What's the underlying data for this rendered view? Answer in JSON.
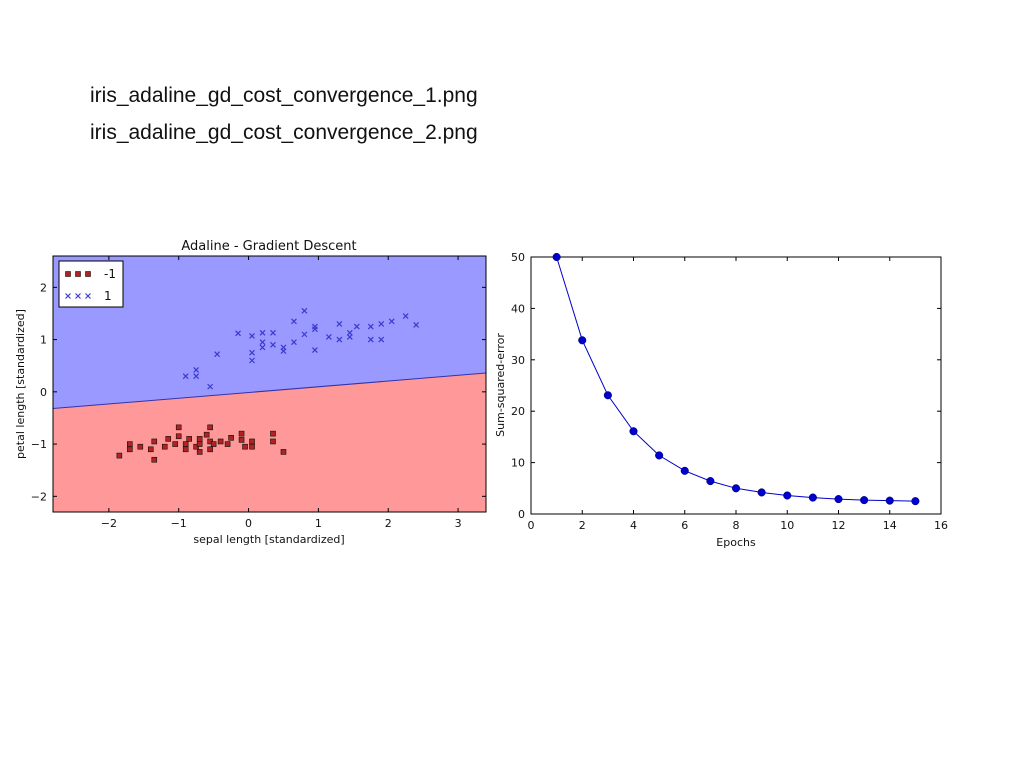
{
  "slide": {
    "lines": [
      "iris_adaline_gd_cost_convergence_1.png",
      "iris_adaline_gd_cost_convergence_2.png"
    ]
  },
  "colors": {
    "region_neg": "#ff9999",
    "region_pos": "#9999ff",
    "class_neg_marker": "#b22222",
    "class_pos_marker": "#3a3ad0",
    "cost_line": "#0000cc"
  },
  "chart_data": [
    {
      "type": "scatter",
      "title": "Adaline - Gradient Descent",
      "xlabel": "sepal length [standardized]",
      "ylabel": "petal length [standardized]",
      "xlim": [
        -2.8,
        3.4
      ],
      "ylim": [
        -2.3,
        2.6
      ],
      "xticks": [
        -2,
        -1,
        0,
        1,
        2,
        3
      ],
      "yticks": [
        -2,
        -1,
        0,
        1,
        2
      ],
      "xtick_labels": [
        "−2",
        "−1",
        "0",
        "1",
        "2",
        "3"
      ],
      "ytick_labels": [
        "−2",
        "−1",
        "0",
        "1",
        "2"
      ],
      "grid": false,
      "legend_position": "top-left",
      "decision_boundary": {
        "x": [
          -2.8,
          3.4
        ],
        "y": [
          -0.32,
          0.36
        ]
      },
      "regions": [
        {
          "label": "-1",
          "side": "below",
          "color": "#ff9999"
        },
        {
          "label": "1",
          "side": "above",
          "color": "#9999ff"
        }
      ],
      "series": [
        {
          "name": "-1",
          "marker": "square",
          "points": [
            [
              -1.85,
              -1.22
            ],
            [
              -1.7,
              -1.1
            ],
            [
              -1.7,
              -1.0
            ],
            [
              -1.55,
              -1.05
            ],
            [
              -1.4,
              -1.1
            ],
            [
              -1.35,
              -0.95
            ],
            [
              -1.35,
              -1.3
            ],
            [
              -1.2,
              -1.05
            ],
            [
              -1.15,
              -0.9
            ],
            [
              -1.05,
              -1.0
            ],
            [
              -1.0,
              -0.85
            ],
            [
              -1.0,
              -0.68
            ],
            [
              -0.9,
              -1.0
            ],
            [
              -0.9,
              -1.1
            ],
            [
              -0.85,
              -0.9
            ],
            [
              -0.75,
              -1.05
            ],
            [
              -0.7,
              -0.9
            ],
            [
              -0.7,
              -1.0
            ],
            [
              -0.7,
              -1.15
            ],
            [
              -0.6,
              -0.82
            ],
            [
              -0.55,
              -0.68
            ],
            [
              -0.55,
              -0.95
            ],
            [
              -0.55,
              -1.1
            ],
            [
              -0.5,
              -1.0
            ],
            [
              -0.4,
              -0.95
            ],
            [
              -0.3,
              -1.0
            ],
            [
              -0.25,
              -0.88
            ],
            [
              -0.1,
              -0.92
            ],
            [
              -0.1,
              -0.8
            ],
            [
              -0.05,
              -1.05
            ],
            [
              0.05,
              -1.05
            ],
            [
              0.05,
              -0.95
            ],
            [
              0.35,
              -0.8
            ],
            [
              0.35,
              -0.95
            ],
            [
              0.5,
              -1.15
            ]
          ]
        },
        {
          "name": "1",
          "marker": "x",
          "points": [
            [
              -0.9,
              0.3
            ],
            [
              -0.75,
              0.3
            ],
            [
              -0.75,
              0.42
            ],
            [
              -0.55,
              0.1
            ],
            [
              -0.45,
              0.72
            ],
            [
              -0.15,
              1.12
            ],
            [
              0.05,
              0.6
            ],
            [
              0.05,
              0.75
            ],
            [
              0.05,
              1.07
            ],
            [
              0.2,
              0.85
            ],
            [
              0.2,
              0.95
            ],
            [
              0.2,
              1.13
            ],
            [
              0.35,
              0.9
            ],
            [
              0.35,
              1.13
            ],
            [
              0.5,
              0.78
            ],
            [
              0.5,
              0.85
            ],
            [
              0.65,
              0.95
            ],
            [
              0.65,
              1.35
            ],
            [
              0.8,
              1.1
            ],
            [
              0.8,
              1.55
            ],
            [
              0.95,
              0.8
            ],
            [
              0.95,
              1.2
            ],
            [
              0.95,
              1.25
            ],
            [
              1.15,
              1.05
            ],
            [
              1.3,
              1.0
            ],
            [
              1.3,
              1.3
            ],
            [
              1.45,
              1.05
            ],
            [
              1.45,
              1.13
            ],
            [
              1.55,
              1.25
            ],
            [
              1.75,
              1.0
            ],
            [
              1.75,
              1.25
            ],
            [
              1.9,
              1.0
            ],
            [
              1.9,
              1.3
            ],
            [
              2.05,
              1.35
            ],
            [
              2.25,
              1.45
            ],
            [
              2.4,
              1.28
            ]
          ]
        }
      ]
    },
    {
      "type": "line",
      "title": "",
      "xlabel": "Epochs",
      "ylabel": "Sum-squared-error",
      "xlim": [
        0,
        16
      ],
      "ylim": [
        0,
        50
      ],
      "xticks": [
        0,
        2,
        4,
        6,
        8,
        10,
        12,
        14,
        16
      ],
      "yticks": [
        0,
        10,
        20,
        30,
        40,
        50
      ],
      "grid": false,
      "x": [
        1,
        2,
        3,
        4,
        5,
        6,
        7,
        8,
        9,
        10,
        11,
        12,
        13,
        14,
        15
      ],
      "series": [
        {
          "values": [
            50,
            33.8,
            23.1,
            16.1,
            11.4,
            8.4,
            6.4,
            5.0,
            4.2,
            3.6,
            3.2,
            2.9,
            2.7,
            2.6,
            2.5
          ],
          "marker": "circle"
        }
      ]
    }
  ]
}
